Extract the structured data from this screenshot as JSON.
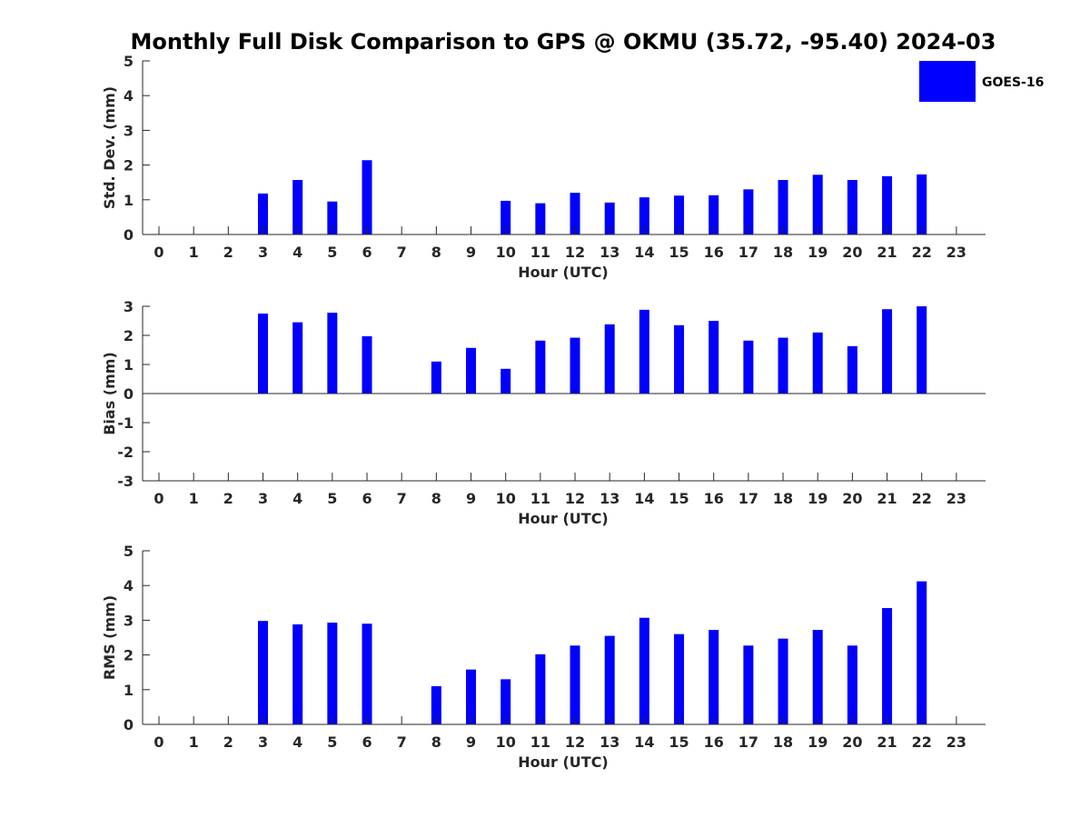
{
  "title": "Monthly Full Disk Comparison to GPS @ OKMU (35.72, -95.40) 2024-03",
  "bar_color": "#0000ff",
  "legend": {
    "label": "GOES-16",
    "position": "top-right"
  },
  "chart_data": [
    {
      "type": "bar",
      "ylabel": "Std. Dev. (mm)",
      "xlabel": "Hour (UTC)",
      "ylim": [
        0,
        5
      ],
      "yticks": [
        0,
        1,
        2,
        3,
        4,
        5
      ],
      "categories": [
        "0",
        "1",
        "2",
        "3",
        "4",
        "5",
        "6",
        "7",
        "8",
        "9",
        "10",
        "11",
        "12",
        "13",
        "14",
        "15",
        "16",
        "17",
        "18",
        "19",
        "20",
        "21",
        "22",
        "23"
      ],
      "values": [
        null,
        null,
        null,
        1.18,
        1.57,
        0.95,
        2.14,
        null,
        null,
        null,
        0.97,
        0.9,
        1.2,
        0.92,
        1.07,
        1.12,
        1.13,
        1.3,
        1.57,
        1.72,
        1.57,
        1.68,
        1.73,
        null
      ]
    },
    {
      "type": "bar",
      "ylabel": "Bias (mm)",
      "xlabel": "Hour (UTC)",
      "ylim": [
        -3,
        3
      ],
      "yticks": [
        -3,
        -2,
        -1,
        0,
        1,
        2,
        3
      ],
      "categories": [
        "0",
        "1",
        "2",
        "3",
        "4",
        "5",
        "6",
        "7",
        "8",
        "9",
        "10",
        "11",
        "12",
        "13",
        "14",
        "15",
        "16",
        "17",
        "18",
        "19",
        "20",
        "21",
        "22",
        "23"
      ],
      "values": [
        null,
        null,
        null,
        2.75,
        2.45,
        2.78,
        1.97,
        null,
        1.1,
        1.57,
        0.85,
        1.82,
        1.92,
        2.38,
        2.88,
        2.35,
        2.5,
        1.82,
        1.92,
        2.1,
        1.63,
        2.9,
        3.0,
        null
      ]
    },
    {
      "type": "bar",
      "ylabel": "RMS (mm)",
      "xlabel": "Hour (UTC)",
      "ylim": [
        0,
        5
      ],
      "yticks": [
        0,
        1,
        2,
        3,
        4,
        5
      ],
      "categories": [
        "0",
        "1",
        "2",
        "3",
        "4",
        "5",
        "6",
        "7",
        "8",
        "9",
        "10",
        "11",
        "12",
        "13",
        "14",
        "15",
        "16",
        "17",
        "18",
        "19",
        "20",
        "21",
        "22",
        "23"
      ],
      "values": [
        null,
        null,
        null,
        2.98,
        2.88,
        2.93,
        2.9,
        null,
        1.1,
        1.58,
        1.3,
        2.02,
        2.27,
        2.55,
        3.07,
        2.6,
        2.72,
        2.27,
        2.47,
        2.72,
        2.27,
        3.35,
        4.12,
        null
      ]
    }
  ]
}
